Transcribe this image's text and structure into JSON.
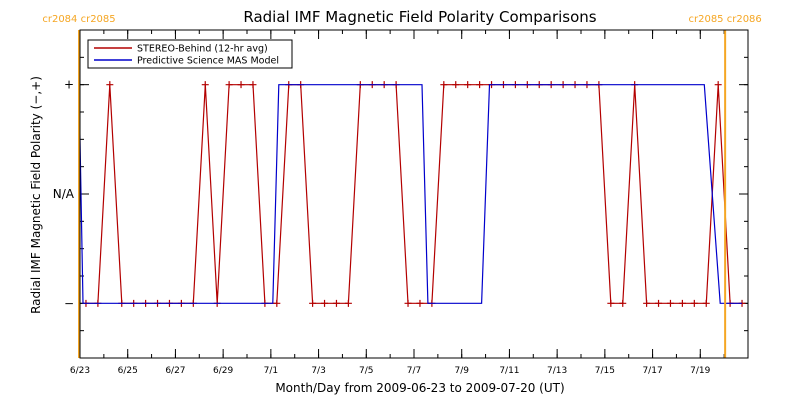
{
  "chart_data": {
    "type": "line",
    "title": "Radial IMF Magnetic Field Polarity Comparisons",
    "xlabel": "Month/Day from 2009-06-23 to 2009-07-20 (UT)",
    "ylabel": "Radial IMF Magnetic Field Polarity (−,+)",
    "x_range": [
      "2009-06-23",
      "2009-07-21"
    ],
    "y_range": [
      -1.5,
      1.5
    ],
    "x_ticks": [
      {
        "x": "2009-06-23",
        "label": "6/23"
      },
      {
        "x": "2009-06-25",
        "label": "6/25"
      },
      {
        "x": "2009-06-27",
        "label": "6/27"
      },
      {
        "x": "2009-06-29",
        "label": "6/29"
      },
      {
        "x": "2009-07-01",
        "label": "7/1"
      },
      {
        "x": "2009-07-03",
        "label": "7/3"
      },
      {
        "x": "2009-07-05",
        "label": "7/5"
      },
      {
        "x": "2009-07-07",
        "label": "7/7"
      },
      {
        "x": "2009-07-09",
        "label": "7/9"
      },
      {
        "x": "2009-07-11",
        "label": "7/11"
      },
      {
        "x": "2009-07-13",
        "label": "7/13"
      },
      {
        "x": "2009-07-15",
        "label": "7/15"
      },
      {
        "x": "2009-07-17",
        "label": "7/17"
      },
      {
        "x": "2009-07-19",
        "label": "7/19"
      }
    ],
    "y_ticks": [
      {
        "y": 1,
        "label": "+"
      },
      {
        "y": 0,
        "label": "N/A"
      },
      {
        "y": -1,
        "label": "−"
      }
    ],
    "legend_position": "top-left",
    "carrington_markers": [
      {
        "x": "2009-06-22T23:00",
        "label": "cr2084 cr2085",
        "color": "#f5a623"
      },
      {
        "x": "2009-07-20T01:00",
        "label": "cr2085 cr2086",
        "color": "#f5a623"
      }
    ],
    "series": [
      {
        "name": "STEREO-Behind (12-hr avg)",
        "color": "#b30000",
        "marker": "plus",
        "points": [
          [
            "2009-06-23T06:00",
            -1
          ],
          [
            "2009-06-23T18:00",
            -1
          ],
          [
            "2009-06-24T06:00",
            1
          ],
          [
            "2009-06-24T18:00",
            -1
          ],
          [
            "2009-06-25T06:00",
            -1
          ],
          [
            "2009-06-25T18:00",
            -1
          ],
          [
            "2009-06-26T06:00",
            -1
          ],
          [
            "2009-06-26T18:00",
            -1
          ],
          [
            "2009-06-27T06:00",
            -1
          ],
          [
            "2009-06-27T18:00",
            -1
          ],
          [
            "2009-06-28T06:00",
            1
          ],
          [
            "2009-06-28T18:00",
            -1
          ],
          [
            "2009-06-29T06:00",
            1
          ],
          [
            "2009-06-29T18:00",
            1
          ],
          [
            "2009-06-30T06:00",
            1
          ],
          [
            "2009-06-30T18:00",
            -1
          ],
          [
            "2009-07-01T06:00",
            -1
          ],
          [
            "2009-07-01T18:00",
            1
          ],
          [
            "2009-07-02T06:00",
            1
          ],
          [
            "2009-07-02T18:00",
            -1
          ],
          [
            "2009-07-03T06:00",
            -1
          ],
          [
            "2009-07-03T18:00",
            -1
          ],
          [
            "2009-07-04T06:00",
            -1
          ],
          [
            "2009-07-04T18:00",
            1
          ],
          [
            "2009-07-05T06:00",
            1
          ],
          [
            "2009-07-05T18:00",
            1
          ],
          [
            "2009-07-06T06:00",
            1
          ],
          [
            "2009-07-06T18:00",
            -1
          ],
          [
            "2009-07-07T06:00",
            -1
          ],
          [
            "2009-07-07T18:00",
            -1
          ],
          [
            "2009-07-08T06:00",
            1
          ],
          [
            "2009-07-08T18:00",
            1
          ],
          [
            "2009-07-09T06:00",
            1
          ],
          [
            "2009-07-09T18:00",
            1
          ],
          [
            "2009-07-10T06:00",
            1
          ],
          [
            "2009-07-10T18:00",
            1
          ],
          [
            "2009-07-11T06:00",
            1
          ],
          [
            "2009-07-11T18:00",
            1
          ],
          [
            "2009-07-12T06:00",
            1
          ],
          [
            "2009-07-12T18:00",
            1
          ],
          [
            "2009-07-13T06:00",
            1
          ],
          [
            "2009-07-13T18:00",
            1
          ],
          [
            "2009-07-14T06:00",
            1
          ],
          [
            "2009-07-14T18:00",
            1
          ],
          [
            "2009-07-15T06:00",
            -1
          ],
          [
            "2009-07-15T18:00",
            -1
          ],
          [
            "2009-07-16T06:00",
            1
          ],
          [
            "2009-07-16T18:00",
            -1
          ],
          [
            "2009-07-17T06:00",
            -1
          ],
          [
            "2009-07-17T18:00",
            -1
          ],
          [
            "2009-07-18T06:00",
            -1
          ],
          [
            "2009-07-18T18:00",
            -1
          ],
          [
            "2009-07-19T06:00",
            -1
          ],
          [
            "2009-07-19T18:00",
            1
          ],
          [
            "2009-07-20T06:00",
            -1
          ],
          [
            "2009-07-20T18:00",
            -1
          ]
        ]
      },
      {
        "name": "Predictive Science MAS Model",
        "color": "#0000cc",
        "marker": "none",
        "points": [
          [
            "2009-06-22T23:00",
            1
          ],
          [
            "2009-06-23T03:00",
            -1
          ],
          [
            "2009-07-01T02:00",
            -1
          ],
          [
            "2009-07-01T08:00",
            1
          ],
          [
            "2009-07-07T08:00",
            1
          ],
          [
            "2009-07-07T14:00",
            -1
          ],
          [
            "2009-07-09T20:00",
            -1
          ],
          [
            "2009-07-10T04:00",
            1
          ],
          [
            "2009-07-19T04:00",
            1
          ],
          [
            "2009-07-19T20:00",
            -1
          ],
          [
            "2009-07-20T18:00",
            -1
          ]
        ]
      }
    ]
  }
}
